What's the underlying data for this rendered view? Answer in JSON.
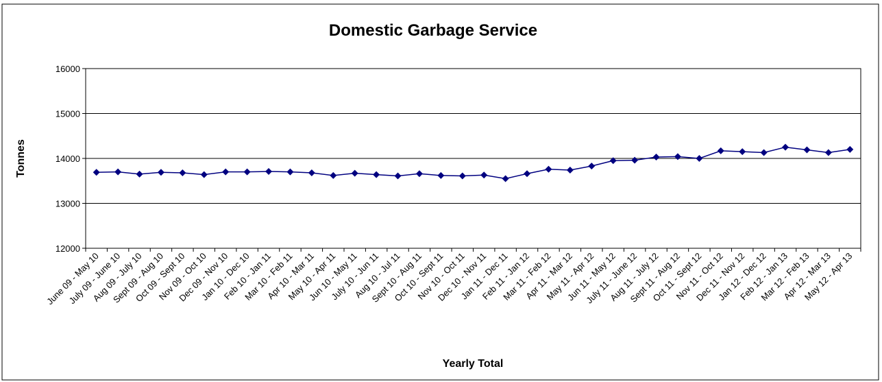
{
  "chart_data": {
    "type": "line",
    "title": "Domestic Garbage Service",
    "x_label": "Yearly Total",
    "y_label": "Tonnes",
    "categories": [
      "June 09 - May 10",
      "July 09 - June 10",
      "Aug 09 - July 10",
      "Sept 09 - Aug 10",
      "Oct 09 - Sept 10",
      "Nov 09 - Oct 10",
      "Dec 09 - Nov 10",
      "Jan 10 - Dec 10",
      "Feb 10 - Jan 11",
      "Mar 10 - Feb 11",
      "Apr 10 - Mar 11",
      "May 10 - Apr 11",
      "Jun 10 - May 11",
      "July 10 - Jun 11",
      "Aug 10 - Jul 11",
      "Sept 10 - Aug 11",
      "Oct 10 - Sept 11",
      "Nov 10 - Oct 11",
      "Dec 10 - Nov 11",
      "Jan 11 - Dec 11",
      "Feb 11 - Jan 12",
      "Mar 11 - Feb 12",
      "Apr 11 - Mar 12",
      "May 11 - Apr 12",
      "Jun 11 - May 12",
      "July 11 - June 12",
      "Aug 11 - July 12",
      "Sept 11 - Aug 12",
      "Oct 11 - Sept 12",
      "Nov 11 - Oct 12",
      "Dec 11 - Nov 12",
      "Jan 12 - Dec 12",
      "Feb 12 - Jan 13",
      "Mar 12 - Feb 13",
      "Apr 12 - Mar 13",
      "May 12 - Apr 13"
    ],
    "values": [
      13690,
      13700,
      13650,
      13690,
      13680,
      13640,
      13700,
      13700,
      13710,
      13700,
      13680,
      13620,
      13670,
      13640,
      13610,
      13660,
      13620,
      13610,
      13630,
      13550,
      13660,
      13760,
      13740,
      13830,
      13950,
      13960,
      14030,
      14040,
      14000,
      14170,
      14150,
      14130,
      14250,
      14190,
      14130,
      14200
    ],
    "color": "#000080",
    "ylim": [
      12000,
      16000
    ],
    "yticks": [
      12000,
      13000,
      14000,
      15000,
      16000
    ],
    "grid": true
  }
}
